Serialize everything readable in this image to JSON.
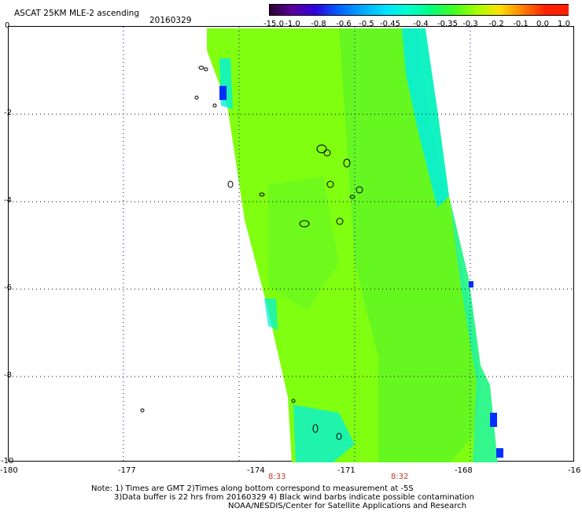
{
  "header": {
    "title": "ASCAT 25KM MLE-2 ascending",
    "date": "20160329"
  },
  "colorbar": {
    "labels": [
      "-15.0",
      "-1.0",
      "-0.8",
      "-0.6",
      "-0.5",
      "-0.45",
      "-0.4",
      "-0.35",
      "-0.3",
      "-0.2",
      "-0.1",
      "0.0",
      "1.0"
    ],
    "colors": [
      "#2a0030",
      "#5a00a0",
      "#2f00e0",
      "#0060ff",
      "#00a8ff",
      "#00e0ff",
      "#00ffd0",
      "#00ff80",
      "#40ff20",
      "#a0ff00",
      "#ffe000",
      "#ff8000",
      "#ff2000"
    ]
  },
  "axes": {
    "x_ticks": [
      "-180",
      "-177",
      "-174",
      "-171",
      "-168",
      "-16"
    ],
    "y_ticks": [
      "0",
      "-2",
      "-4",
      "-6",
      "-8",
      "-10"
    ]
  },
  "orbit_times": [
    "8:33",
    "8:32"
  ],
  "notes": {
    "line1": "Note: 1) Times are GMT 2)Times along bottom correspond to measurement at -5S",
    "line2": "3)Data buffer is 22 hrs from 20160329 4) Black wind barbs indicate possible contamination",
    "line3": "NOAA/NESDIS/Center for Satellite Applications and Research"
  },
  "palette": {
    "main_green": "#80ff10",
    "mid_green": "#50f030",
    "cyan": "#00f0e0",
    "blue": "#0030ff"
  }
}
